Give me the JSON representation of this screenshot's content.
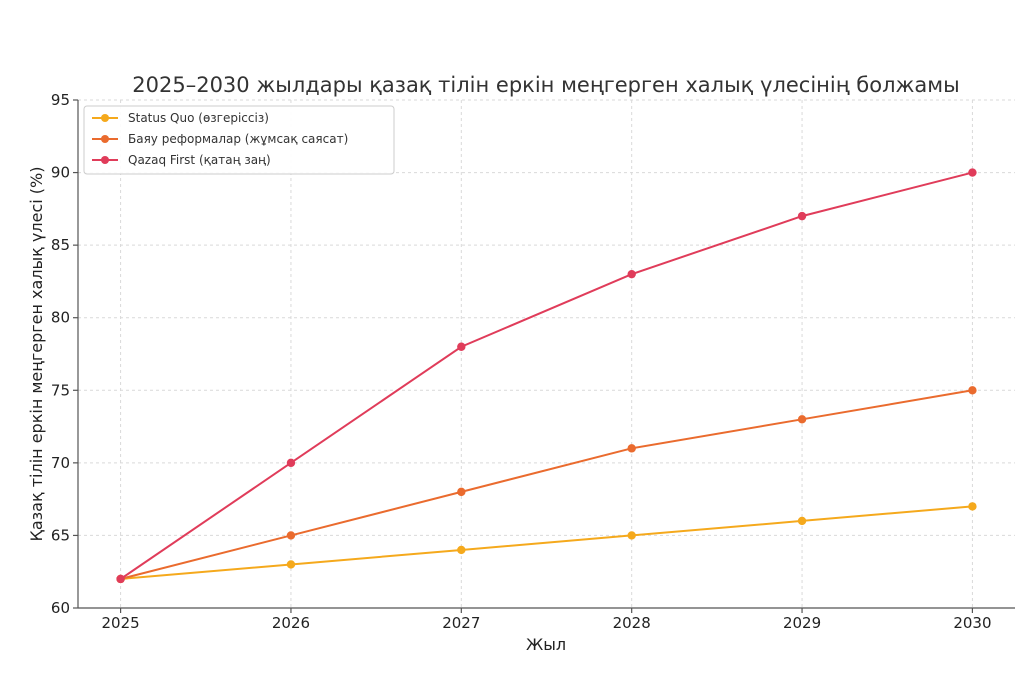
{
  "chart_data": {
    "type": "line",
    "title": "2025–2030 жылдары қазақ тілін еркін меңгерген халық үлесінің болжамы",
    "xlabel": "Жыл",
    "ylabel": "Қазақ тілін еркін меңгерген халық үлесі (%)",
    "x": [
      2025,
      2026,
      2027,
      2028,
      2029,
      2030
    ],
    "xlim": [
      2024.75,
      2030.25
    ],
    "ylim": [
      60,
      95
    ],
    "yticks": [
      60,
      65,
      70,
      75,
      80,
      85,
      90,
      95
    ],
    "grid": true,
    "legend": "top-left",
    "series": [
      {
        "name": "Status Quo (өзгеріссіз)",
        "color": "#f5a91c",
        "values": [
          62,
          63,
          64,
          65,
          66,
          67
        ]
      },
      {
        "name": "Баяу реформалар (жұмсақ саясат)",
        "color": "#ea6b2e",
        "values": [
          62,
          65,
          68,
          71,
          73,
          75
        ]
      },
      {
        "name": "Qazaq First (қатаң заң)",
        "color": "#e03c5a",
        "values": [
          62,
          70,
          78,
          83,
          87,
          90
        ]
      }
    ]
  }
}
